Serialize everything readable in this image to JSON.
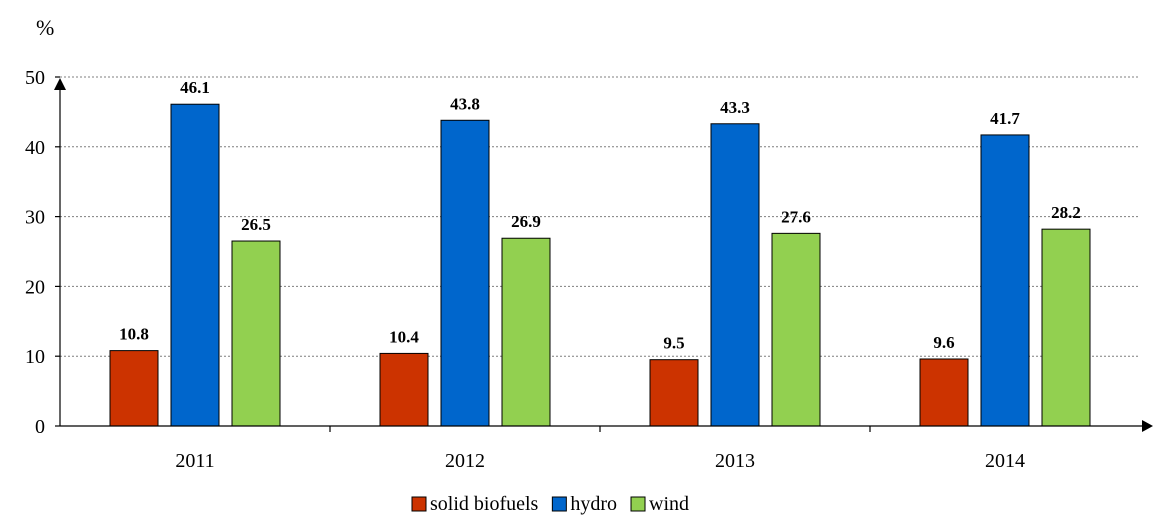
{
  "chart_data": {
    "type": "bar",
    "unit_label": "%",
    "categories": [
      "2011",
      "2012",
      "2013",
      "2014"
    ],
    "series": [
      {
        "name": "solid biofuels",
        "values": [
          10.8,
          10.4,
          9.5,
          9.6
        ],
        "color": "#cc3300"
      },
      {
        "name": "hydro",
        "values": [
          46.1,
          43.8,
          43.3,
          41.7
        ],
        "color": "#0066cc"
      },
      {
        "name": "wind",
        "values": [
          26.5,
          26.9,
          27.6,
          28.2
        ],
        "color": "#92d050"
      }
    ],
    "ylim": [
      0,
      50
    ],
    "yticks": [
      0,
      10,
      20,
      30,
      40,
      50
    ],
    "grid": true,
    "legend": "bottom"
  }
}
